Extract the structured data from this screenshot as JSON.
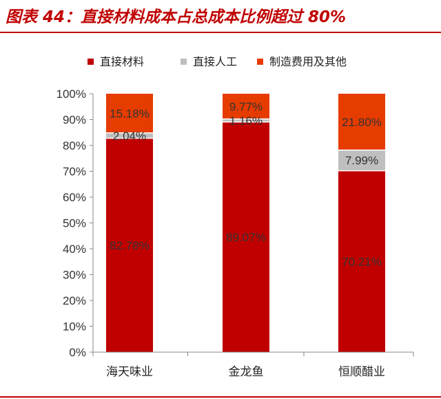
{
  "figure": {
    "title": "图表 44：直接材料成本占总成本比例超过 80%"
  },
  "colors": {
    "title": "#c00000",
    "direct_material": "#c00000",
    "direct_labor": "#bfbfbf",
    "manufacturing": "#e63c00"
  },
  "chart_data": {
    "type": "bar",
    "stacked": true,
    "categories": [
      "海天味业",
      "金龙鱼",
      "恒顺醋业"
    ],
    "series": [
      {
        "name": "直接材料",
        "values": [
          82.78,
          89.07,
          70.21
        ],
        "labels": [
          "82.78%",
          "89.07%",
          "70.21%"
        ]
      },
      {
        "name": "直接人工",
        "values": [
          2.04,
          1.16,
          7.99
        ],
        "labels": [
          "2.04%",
          "1.16%",
          "7.99%"
        ]
      },
      {
        "name": "制造费用及其他",
        "values": [
          15.18,
          9.77,
          21.8
        ],
        "labels": [
          "15.18%",
          "9.77%",
          "21.80%"
        ]
      }
    ],
    "ylim": [
      0,
      100
    ],
    "yticks": [
      "0%",
      "10%",
      "20%",
      "30%",
      "40%",
      "50%",
      "60%",
      "70%",
      "80%",
      "90%",
      "100%"
    ],
    "grid": false,
    "legend_position": "top"
  }
}
